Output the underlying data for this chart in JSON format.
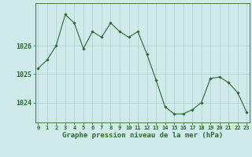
{
  "x": [
    0,
    1,
    2,
    3,
    4,
    5,
    6,
    7,
    8,
    9,
    10,
    11,
    12,
    13,
    14,
    15,
    16,
    17,
    18,
    19,
    20,
    21,
    22,
    23
  ],
  "y": [
    1025.2,
    1025.5,
    1026.0,
    1027.1,
    1026.8,
    1025.9,
    1026.5,
    1026.3,
    1026.8,
    1026.5,
    1026.3,
    1026.5,
    1025.7,
    1024.8,
    1023.85,
    1023.6,
    1023.6,
    1023.75,
    1024.0,
    1024.85,
    1024.9,
    1024.7,
    1024.35,
    1023.65
  ],
  "line_color": "#2d6a2d",
  "marker": "D",
  "marker_size": 1.8,
  "background_color": "#ceeaea",
  "grid_color": "#b0cccc",
  "axis_color": "#2d6a2d",
  "tick_label_color": "#2d6a2d",
  "xlabel": "Graphe pression niveau de la mer (hPa)",
  "xlabel_color": "#2d6a2d",
  "xlabel_fontsize": 6.5,
  "yticks": [
    1024,
    1025,
    1026
  ],
  "xticks": [
    0,
    1,
    2,
    3,
    4,
    5,
    6,
    7,
    8,
    9,
    10,
    11,
    12,
    13,
    14,
    15,
    16,
    17,
    18,
    19,
    20,
    21,
    22,
    23
  ],
  "ylim": [
    1023.3,
    1027.5
  ],
  "xlim": [
    -0.3,
    23.3
  ]
}
